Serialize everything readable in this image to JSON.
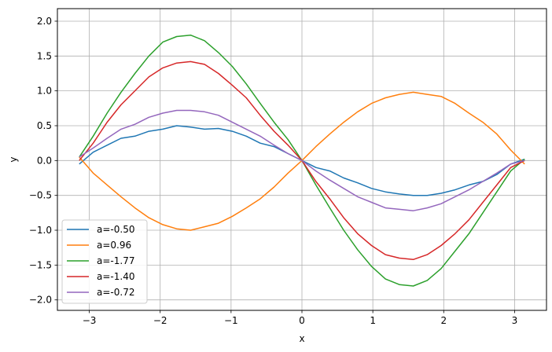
{
  "chart_data": {
    "type": "line",
    "title": "",
    "xlabel": "x",
    "ylabel": "y",
    "xlim": [
      -3.45,
      3.45
    ],
    "ylim": [
      -2.15,
      2.18
    ],
    "x_ticks": [
      -3,
      -2,
      -1,
      0,
      1,
      2,
      3
    ],
    "x_tick_labels": [
      "−3",
      "−2",
      "−1",
      "0",
      "1",
      "2",
      "3"
    ],
    "y_ticks": [
      -2.0,
      -1.5,
      -1.0,
      -0.5,
      0.0,
      0.5,
      1.0,
      1.5,
      2.0
    ],
    "y_tick_labels": [
      "−2.0",
      "−1.5",
      "−1.0",
      "−0.5",
      "0.0",
      "0.5",
      "1.0",
      "1.5",
      "2.0"
    ],
    "grid": true,
    "legend_position": "lower-left",
    "x": [
      -3.1416,
      -2.9452,
      -2.7489,
      -2.5525,
      -2.3562,
      -2.1598,
      -1.9635,
      -1.7671,
      -1.5708,
      -1.3744,
      -1.1781,
      -0.9817,
      -0.7854,
      -0.589,
      -0.3927,
      -0.1963,
      0.0,
      0.1963,
      0.3927,
      0.589,
      0.7854,
      0.9817,
      1.1781,
      1.3744,
      1.5708,
      1.7671,
      1.9635,
      2.1598,
      2.3562,
      2.5525,
      2.7489,
      2.9452,
      3.1416
    ],
    "series": [
      {
        "name": "a=-0.50",
        "color": "#1f77b4",
        "values": [
          -0.05,
          0.12,
          0.22,
          0.32,
          0.35,
          0.42,
          0.45,
          0.5,
          0.48,
          0.45,
          0.46,
          0.42,
          0.35,
          0.25,
          0.2,
          0.1,
          0.0,
          -0.1,
          -0.15,
          -0.25,
          -0.32,
          -0.4,
          -0.45,
          -0.48,
          -0.5,
          -0.5,
          -0.47,
          -0.42,
          -0.35,
          -0.3,
          -0.2,
          -0.05,
          0.02
        ]
      },
      {
        "name": "a=0.96",
        "color": "#ff7f0e",
        "values": [
          0.05,
          -0.18,
          -0.35,
          -0.52,
          -0.68,
          -0.82,
          -0.92,
          -0.98,
          -1.0,
          -0.95,
          -0.9,
          -0.8,
          -0.68,
          -0.55,
          -0.38,
          -0.18,
          0.0,
          0.2,
          0.38,
          0.55,
          0.7,
          0.82,
          0.9,
          0.95,
          0.98,
          0.95,
          0.92,
          0.82,
          0.68,
          0.55,
          0.38,
          0.15,
          -0.05
        ]
      },
      {
        "name": "a=-1.77",
        "color": "#2ca02c",
        "values": [
          0.05,
          0.35,
          0.68,
          0.98,
          1.25,
          1.5,
          1.7,
          1.78,
          1.8,
          1.72,
          1.55,
          1.35,
          1.1,
          0.82,
          0.55,
          0.3,
          0.0,
          -0.35,
          -0.68,
          -1.0,
          -1.28,
          -1.52,
          -1.7,
          -1.78,
          -1.8,
          -1.72,
          -1.55,
          -1.3,
          -1.05,
          -0.75,
          -0.45,
          -0.15,
          0.02
        ]
      },
      {
        "name": "a=-1.40",
        "color": "#d62728",
        "values": [
          0.0,
          0.25,
          0.55,
          0.8,
          1.0,
          1.2,
          1.33,
          1.4,
          1.42,
          1.38,
          1.25,
          1.08,
          0.9,
          0.65,
          0.42,
          0.22,
          0.0,
          -0.3,
          -0.55,
          -0.82,
          -1.05,
          -1.22,
          -1.35,
          -1.4,
          -1.42,
          -1.35,
          -1.22,
          -1.05,
          -0.85,
          -0.6,
          -0.35,
          -0.1,
          0.0
        ]
      },
      {
        "name": "a=-0.72",
        "color": "#9467bd",
        "values": [
          0.05,
          0.18,
          0.32,
          0.45,
          0.52,
          0.62,
          0.68,
          0.72,
          0.72,
          0.7,
          0.65,
          0.55,
          0.45,
          0.35,
          0.22,
          0.1,
          0.0,
          -0.15,
          -0.28,
          -0.4,
          -0.52,
          -0.6,
          -0.68,
          -0.7,
          -0.72,
          -0.68,
          -0.62,
          -0.52,
          -0.42,
          -0.3,
          -0.18,
          -0.05,
          0.0
        ]
      }
    ]
  }
}
